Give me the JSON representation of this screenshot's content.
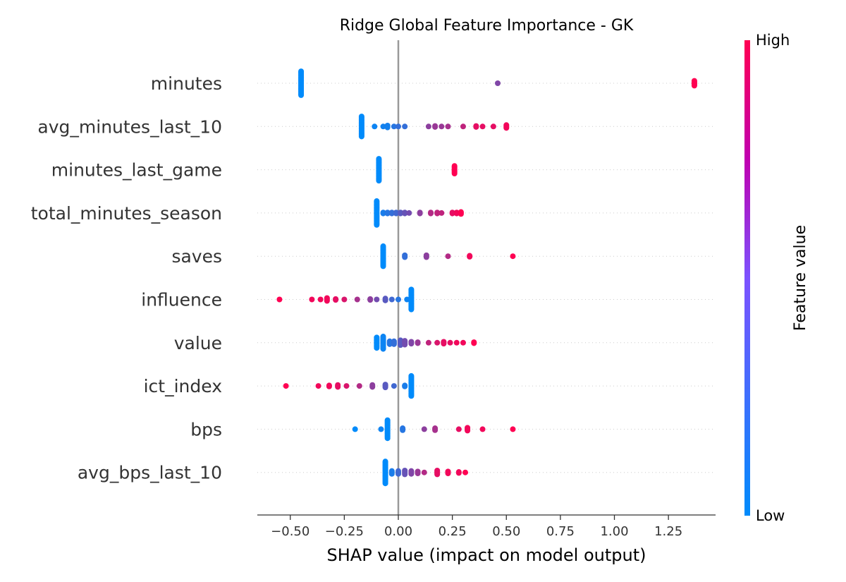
{
  "chart_data": {
    "type": "scatter",
    "subtype": "shap-beeswarm",
    "title": "Ridge Global Feature Importance - GK",
    "xlabel": "SHAP value (impact on model output)",
    "xlim": [
      -0.66,
      1.47
    ],
    "xticks": [
      -0.5,
      -0.25,
      0.0,
      0.25,
      0.5,
      0.75,
      1.0,
      1.25
    ],
    "xtick_labels": [
      "−0.50",
      "−0.25",
      "0.00",
      "0.25",
      "0.50",
      "0.75",
      "1.00",
      "1.25"
    ],
    "zero_line": 0.0,
    "colorbar": {
      "label": "Feature value",
      "high_label": "High",
      "low_label": "Low",
      "low_color": "#008bfb",
      "high_color": "#ff0052"
    },
    "features": [
      {
        "name": "minutes",
        "points": [
          {
            "x": -0.45,
            "v": 0.0,
            "n": 26
          },
          {
            "x": 0.46,
            "v": 0.5,
            "n": 1
          },
          {
            "x": 1.37,
            "v": 1.0,
            "n": 6
          }
        ]
      },
      {
        "name": "avg_minutes_last_10",
        "points": [
          {
            "x": -0.17,
            "v": 0.0,
            "n": 22
          },
          {
            "x": -0.11,
            "v": 0.05,
            "n": 1
          },
          {
            "x": -0.07,
            "v": 0.07,
            "n": 1
          },
          {
            "x": -0.05,
            "v": 0.08,
            "n": 3
          },
          {
            "x": -0.02,
            "v": 0.15,
            "n": 1
          },
          {
            "x": 0.0,
            "v": 0.2,
            "n": 1
          },
          {
            "x": 0.03,
            "v": 0.2,
            "n": 1
          },
          {
            "x": 0.14,
            "v": 0.55,
            "n": 1
          },
          {
            "x": 0.17,
            "v": 0.6,
            "n": 2
          },
          {
            "x": 0.2,
            "v": 0.6,
            "n": 1
          },
          {
            "x": 0.23,
            "v": 0.65,
            "n": 1
          },
          {
            "x": 0.3,
            "v": 0.75,
            "n": 1
          },
          {
            "x": 0.36,
            "v": 0.9,
            "n": 2
          },
          {
            "x": 0.39,
            "v": 0.9,
            "n": 1
          },
          {
            "x": 0.44,
            "v": 0.9,
            "n": 1
          },
          {
            "x": 0.5,
            "v": 0.95,
            "n": 4
          }
        ]
      },
      {
        "name": "minutes_last_game",
        "points": [
          {
            "x": -0.09,
            "v": 0.0,
            "n": 24
          },
          {
            "x": 0.26,
            "v": 1.0,
            "n": 9
          }
        ]
      },
      {
        "name": "total_minutes_season",
        "points": [
          {
            "x": -0.1,
            "v": 0.0,
            "n": 26
          },
          {
            "x": -0.07,
            "v": 0.1,
            "n": 2
          },
          {
            "x": -0.05,
            "v": 0.15,
            "n": 2
          },
          {
            "x": -0.03,
            "v": 0.2,
            "n": 2
          },
          {
            "x": -0.01,
            "v": 0.25,
            "n": 2
          },
          {
            "x": 0.01,
            "v": 0.35,
            "n": 2
          },
          {
            "x": 0.03,
            "v": 0.4,
            "n": 2
          },
          {
            "x": 0.05,
            "v": 0.45,
            "n": 1
          },
          {
            "x": 0.1,
            "v": 0.55,
            "n": 2
          },
          {
            "x": 0.15,
            "v": 0.7,
            "n": 2
          },
          {
            "x": 0.18,
            "v": 0.75,
            "n": 2
          },
          {
            "x": 0.2,
            "v": 0.75,
            "n": 1
          },
          {
            "x": 0.25,
            "v": 0.9,
            "n": 2
          },
          {
            "x": 0.27,
            "v": 0.95,
            "n": 2
          },
          {
            "x": 0.29,
            "v": 1.0,
            "n": 3
          }
        ]
      },
      {
        "name": "saves",
        "points": [
          {
            "x": -0.07,
            "v": 0.0,
            "n": 22
          },
          {
            "x": 0.03,
            "v": 0.2,
            "n": 3
          },
          {
            "x": 0.13,
            "v": 0.55,
            "n": 3
          },
          {
            "x": 0.23,
            "v": 0.7,
            "n": 1
          },
          {
            "x": 0.33,
            "v": 0.95,
            "n": 2
          },
          {
            "x": 0.53,
            "v": 1.0,
            "n": 1
          }
        ]
      },
      {
        "name": "influence",
        "points": [
          {
            "x": 0.06,
            "v": 0.0,
            "n": 22
          },
          {
            "x": 0.04,
            "v": 0.05,
            "n": 1
          },
          {
            "x": 0.0,
            "v": 0.15,
            "n": 1
          },
          {
            "x": -0.03,
            "v": 0.25,
            "n": 1
          },
          {
            "x": -0.06,
            "v": 0.35,
            "n": 3
          },
          {
            "x": -0.1,
            "v": 0.45,
            "n": 1
          },
          {
            "x": -0.13,
            "v": 0.55,
            "n": 2
          },
          {
            "x": -0.19,
            "v": 0.65,
            "n": 1
          },
          {
            "x": -0.25,
            "v": 0.85,
            "n": 1
          },
          {
            "x": -0.29,
            "v": 0.9,
            "n": 2
          },
          {
            "x": -0.33,
            "v": 0.95,
            "n": 4
          },
          {
            "x": -0.36,
            "v": 0.95,
            "n": 1
          },
          {
            "x": -0.4,
            "v": 0.95,
            "n": 1
          },
          {
            "x": -0.55,
            "v": 1.0,
            "n": 1
          }
        ]
      },
      {
        "name": "value",
        "points": [
          {
            "x": -0.1,
            "v": 0.0,
            "n": 12
          },
          {
            "x": -0.07,
            "v": 0.05,
            "n": 14
          },
          {
            "x": -0.04,
            "v": 0.15,
            "n": 4
          },
          {
            "x": -0.02,
            "v": 0.2,
            "n": 4
          },
          {
            "x": 0.01,
            "v": 0.35,
            "n": 6
          },
          {
            "x": 0.03,
            "v": 0.45,
            "n": 5
          },
          {
            "x": 0.06,
            "v": 0.5,
            "n": 3
          },
          {
            "x": 0.09,
            "v": 0.6,
            "n": 2
          },
          {
            "x": 0.14,
            "v": 0.75,
            "n": 1
          },
          {
            "x": 0.18,
            "v": 0.85,
            "n": 1
          },
          {
            "x": 0.21,
            "v": 0.9,
            "n": 3
          },
          {
            "x": 0.24,
            "v": 0.9,
            "n": 1
          },
          {
            "x": 0.27,
            "v": 0.95,
            "n": 1
          },
          {
            "x": 0.3,
            "v": 0.95,
            "n": 1
          },
          {
            "x": 0.35,
            "v": 1.0,
            "n": 2
          }
        ]
      },
      {
        "name": "ict_index",
        "points": [
          {
            "x": 0.06,
            "v": 0.0,
            "n": 22
          },
          {
            "x": 0.03,
            "v": 0.1,
            "n": 2
          },
          {
            "x": -0.02,
            "v": 0.25,
            "n": 1
          },
          {
            "x": -0.06,
            "v": 0.35,
            "n": 4
          },
          {
            "x": -0.12,
            "v": 0.55,
            "n": 3
          },
          {
            "x": -0.18,
            "v": 0.7,
            "n": 1
          },
          {
            "x": -0.24,
            "v": 0.85,
            "n": 1
          },
          {
            "x": -0.28,
            "v": 0.9,
            "n": 3
          },
          {
            "x": -0.32,
            "v": 0.95,
            "n": 2
          },
          {
            "x": -0.37,
            "v": 0.95,
            "n": 1
          },
          {
            "x": -0.52,
            "v": 1.0,
            "n": 1
          }
        ]
      },
      {
        "name": "bps",
        "points": [
          {
            "x": -0.2,
            "v": 0.0,
            "n": 1
          },
          {
            "x": -0.08,
            "v": 0.05,
            "n": 1
          },
          {
            "x": -0.05,
            "v": 0.0,
            "n": 20
          },
          {
            "x": 0.02,
            "v": 0.15,
            "n": 3
          },
          {
            "x": 0.12,
            "v": 0.55,
            "n": 1
          },
          {
            "x": 0.17,
            "v": 0.65,
            "n": 3
          },
          {
            "x": 0.28,
            "v": 0.9,
            "n": 1
          },
          {
            "x": 0.32,
            "v": 0.95,
            "n": 4
          },
          {
            "x": 0.39,
            "v": 0.95,
            "n": 1
          },
          {
            "x": 0.53,
            "v": 1.0,
            "n": 1
          }
        ]
      },
      {
        "name": "avg_bps_last_10",
        "points": [
          {
            "x": -0.06,
            "v": 0.0,
            "n": 24
          },
          {
            "x": -0.03,
            "v": 0.1,
            "n": 4
          },
          {
            "x": 0.0,
            "v": 0.25,
            "n": 4
          },
          {
            "x": 0.03,
            "v": 0.4,
            "n": 5
          },
          {
            "x": 0.06,
            "v": 0.5,
            "n": 4
          },
          {
            "x": 0.09,
            "v": 0.6,
            "n": 3
          },
          {
            "x": 0.12,
            "v": 0.7,
            "n": 1
          },
          {
            "x": 0.18,
            "v": 0.9,
            "n": 5
          },
          {
            "x": 0.23,
            "v": 0.95,
            "n": 3
          },
          {
            "x": 0.28,
            "v": 0.95,
            "n": 2
          },
          {
            "x": 0.31,
            "v": 1.0,
            "n": 1
          }
        ]
      }
    ]
  }
}
